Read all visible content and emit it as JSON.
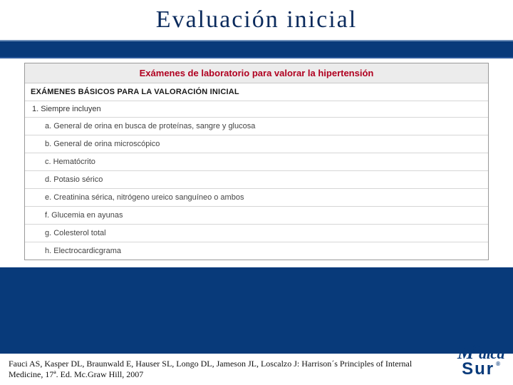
{
  "slide": {
    "title": "Evaluación   inicial",
    "table": {
      "header": "Exámenes de laboratorio para valorar la hipertensión",
      "subheader": "EXÁMENES BÁSICOS PARA LA VALORACIÓN INICIAL",
      "lead": "1. Siempre incluyen",
      "items": [
        "a. General de orina en busca de proteínas, sangre y glucosa",
        "b. General de orina microscópico",
        "c. Hematócrito",
        "d. Potasio sérico",
        "e. Creatinina sérica, nitrógeno ureico sanguíneo o ambos",
        "f. Glucemia en ayunas",
        "g. Colesterol total",
        "h. Electrocardicgrama"
      ]
    },
    "citation": "Fauci AS, Kasper DL, Braunwald E, Hauser SL, Longo DL, Jameson JL, Loscalzo J: Harrison´s Principles of Internal Medicine, 17ª.  Ed. Mc.Graw Hill, 2007",
    "logo": {
      "part1": "M",
      "part2": "dica",
      "part3": "Sur",
      "registered": "®"
    }
  },
  "style": {
    "bg_primary": "#083a7a",
    "header_red": "#b00020",
    "border_gray": "#9a9a9a"
  }
}
